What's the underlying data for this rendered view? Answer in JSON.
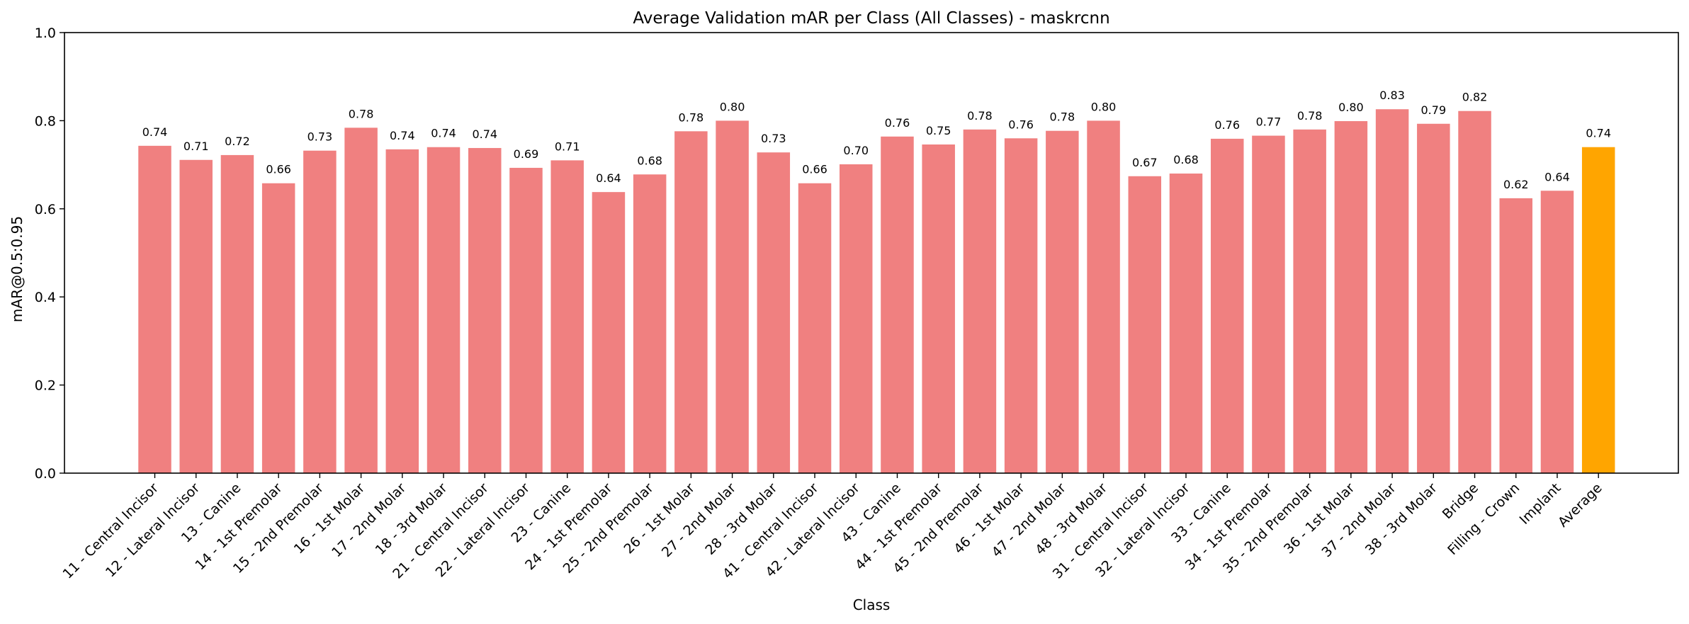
{
  "chart_data": {
    "type": "bar",
    "title": "Average Validation mAR per Class (All Classes) - maskrcnn",
    "xlabel": "Class",
    "ylabel": "mAR@0.5:0.95",
    "ylim": [
      0,
      1.0
    ],
    "yticks": [
      "0.0",
      "0.2",
      "0.4",
      "0.6",
      "0.8",
      "1.0"
    ],
    "grid": false,
    "categories": [
      "11 - Central Incisor",
      "12 - Lateral Incisor",
      "13 - Canine",
      "14 - 1st Premolar",
      "15 - 2nd Premolar",
      "16 - 1st Molar",
      "17 - 2nd Molar",
      "18 - 3rd Molar",
      "21 - Central Incisor",
      "22 - Lateral Incisor",
      "23 - Canine",
      "24 - 1st Premolar",
      "25 - 2nd Premolar",
      "26 - 1st Molar",
      "27 - 2nd Molar",
      "28 - 3rd Molar",
      "41 - Central Incisor",
      "42 - Lateral Incisor",
      "43 - Canine",
      "44 - 1st Premolar",
      "45 - 2nd Premolar",
      "46 - 1st Molar",
      "47 - 2nd Molar",
      "48 - 3rd Molar",
      "31 - Central Incisor",
      "32 - Lateral Incisor",
      "33 - Canine",
      "34 - 1st Premolar",
      "35 - 2nd Premolar",
      "36 - 1st Molar",
      "37 - 2nd Molar",
      "38 - 3rd Molar",
      "Bridge",
      "Filling - Crown",
      "Implant",
      "Average"
    ],
    "values": [
      0.743,
      0.711,
      0.722,
      0.658,
      0.732,
      0.784,
      0.735,
      0.74,
      0.738,
      0.693,
      0.71,
      0.638,
      0.678,
      0.776,
      0.8,
      0.728,
      0.658,
      0.701,
      0.764,
      0.746,
      0.78,
      0.76,
      0.777,
      0.8,
      0.674,
      0.68,
      0.759,
      0.766,
      0.78,
      0.799,
      0.826,
      0.793,
      0.822,
      0.624,
      0.641,
      0.74
    ],
    "value_labels": [
      "0.74",
      "0.71",
      "0.72",
      "0.66",
      "0.73",
      "0.78",
      "0.74",
      "0.74",
      "0.74",
      "0.69",
      "0.71",
      "0.64",
      "0.68",
      "0.78",
      "0.80",
      "0.73",
      "0.66",
      "0.70",
      "0.76",
      "0.75",
      "0.78",
      "0.76",
      "0.78",
      "0.80",
      "0.67",
      "0.68",
      "0.76",
      "0.77",
      "0.78",
      "0.80",
      "0.83",
      "0.79",
      "0.82",
      "0.62",
      "0.64",
      "0.74"
    ],
    "bar_color": "#f08080",
    "highlight_category": "Average",
    "highlight_color": "#ffa500"
  }
}
